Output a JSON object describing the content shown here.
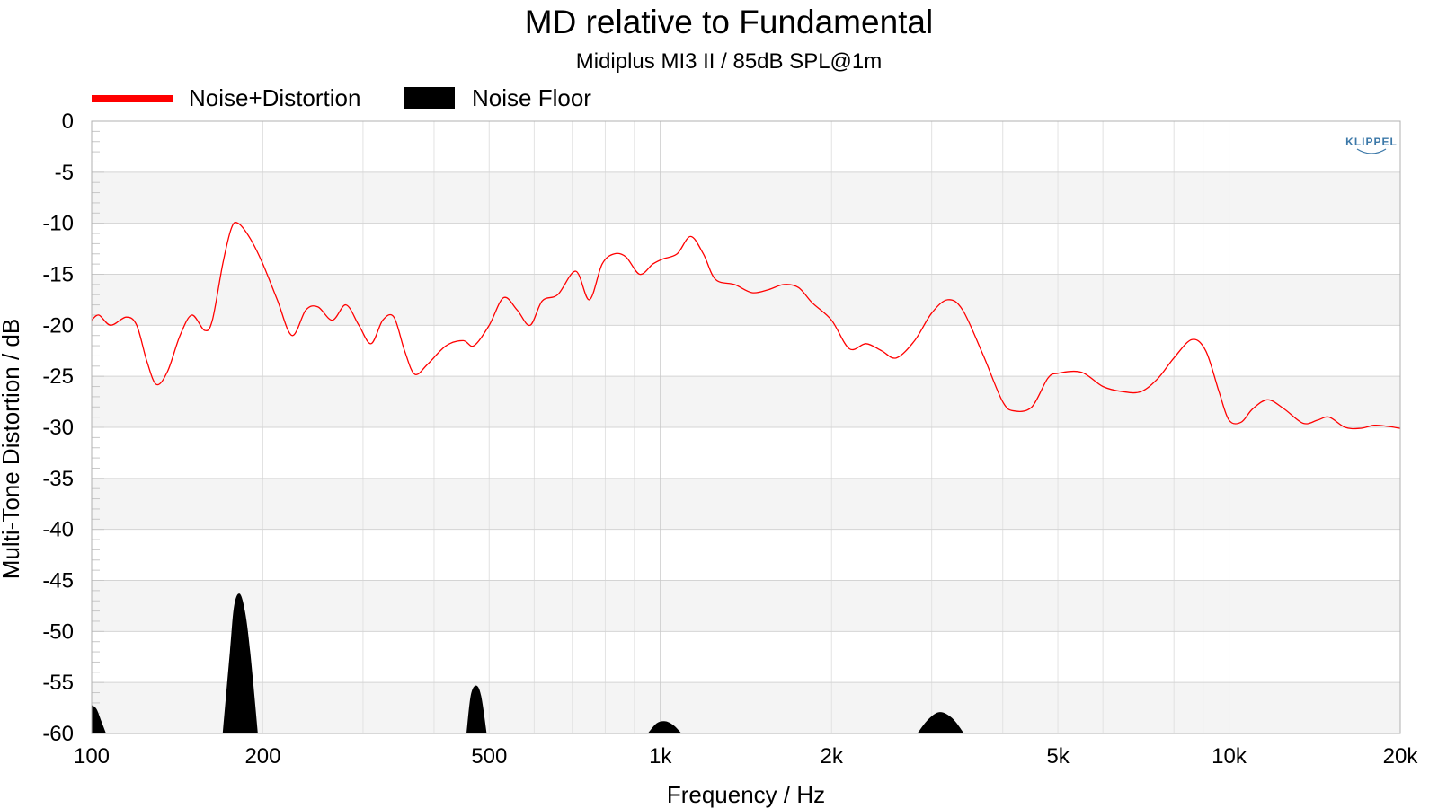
{
  "chart_data": {
    "type": "line",
    "title": "MD relative to Fundamental",
    "subtitle": "Midiplus MI3 II / 85dB SPL@1m",
    "xlabel": "Frequency / Hz",
    "ylabel": "Multi-Tone Distortion / dB",
    "x_scale": "log",
    "xlim": [
      100,
      20000
    ],
    "ylim": [
      -60,
      0
    ],
    "x_ticks": [
      {
        "value": 100,
        "label": "100"
      },
      {
        "value": 200,
        "label": "200"
      },
      {
        "value": 500,
        "label": "500"
      },
      {
        "value": 1000,
        "label": "1k"
      },
      {
        "value": 2000,
        "label": "2k"
      },
      {
        "value": 5000,
        "label": "5k"
      },
      {
        "value": 10000,
        "label": "10k"
      },
      {
        "value": 20000,
        "label": "20k"
      }
    ],
    "y_ticks": [
      {
        "value": 0,
        "label": "0"
      },
      {
        "value": -5,
        "label": "-5"
      },
      {
        "value": -10,
        "label": "-10"
      },
      {
        "value": -15,
        "label": "-15"
      },
      {
        "value": -20,
        "label": "-20"
      },
      {
        "value": -25,
        "label": "-25"
      },
      {
        "value": -30,
        "label": "-30"
      },
      {
        "value": -35,
        "label": "-35"
      },
      {
        "value": -40,
        "label": "-40"
      },
      {
        "value": -45,
        "label": "-45"
      },
      {
        "value": -50,
        "label": "-50"
      },
      {
        "value": -55,
        "label": "-55"
      },
      {
        "value": -60,
        "label": "-60"
      }
    ],
    "grid": true,
    "legend_position": "top-left",
    "logo": "KLIPPEL",
    "colors": {
      "noise_distortion": "#ff0000",
      "noise_floor": "#000000",
      "band_shade": "#f4f4f4",
      "grid": "#d4d4d4"
    },
    "series": [
      {
        "name": "Noise+Distortion",
        "type": "line",
        "points": [
          [
            100,
            -19.5
          ],
          [
            103,
            -19.0
          ],
          [
            108,
            -20.0
          ],
          [
            115,
            -19.2
          ],
          [
            120,
            -20.0
          ],
          [
            125,
            -23.5
          ],
          [
            130,
            -25.8
          ],
          [
            136,
            -24.5
          ],
          [
            143,
            -21.0
          ],
          [
            150,
            -19.0
          ],
          [
            158,
            -20.5
          ],
          [
            163,
            -19.5
          ],
          [
            170,
            -14.0
          ],
          [
            176,
            -10.5
          ],
          [
            181,
            -10.0
          ],
          [
            190,
            -11.5
          ],
          [
            200,
            -14.0
          ],
          [
            212,
            -17.5
          ],
          [
            225,
            -21.0
          ],
          [
            238,
            -18.5
          ],
          [
            250,
            -18.2
          ],
          [
            265,
            -19.5
          ],
          [
            280,
            -18.0
          ],
          [
            295,
            -20.0
          ],
          [
            310,
            -21.8
          ],
          [
            325,
            -19.5
          ],
          [
            340,
            -19.2
          ],
          [
            355,
            -22.5
          ],
          [
            370,
            -24.8
          ],
          [
            390,
            -23.8
          ],
          [
            420,
            -22.0
          ],
          [
            450,
            -21.5
          ],
          [
            470,
            -22.0
          ],
          [
            500,
            -20.0
          ],
          [
            530,
            -17.3
          ],
          [
            560,
            -18.5
          ],
          [
            590,
            -20.0
          ],
          [
            620,
            -17.6
          ],
          [
            660,
            -17.0
          ],
          [
            710,
            -14.7
          ],
          [
            750,
            -17.5
          ],
          [
            790,
            -14.0
          ],
          [
            830,
            -13.0
          ],
          [
            870,
            -13.3
          ],
          [
            920,
            -15.0
          ],
          [
            970,
            -14.0
          ],
          [
            1010,
            -13.5
          ],
          [
            1070,
            -13.0
          ],
          [
            1130,
            -11.3
          ],
          [
            1190,
            -13.0
          ],
          [
            1250,
            -15.5
          ],
          [
            1350,
            -16.0
          ],
          [
            1450,
            -16.8
          ],
          [
            1550,
            -16.5
          ],
          [
            1650,
            -16.0
          ],
          [
            1750,
            -16.3
          ],
          [
            1850,
            -17.8
          ],
          [
            2000,
            -19.5
          ],
          [
            2150,
            -22.3
          ],
          [
            2300,
            -21.8
          ],
          [
            2450,
            -22.5
          ],
          [
            2600,
            -23.2
          ],
          [
            2800,
            -21.5
          ],
          [
            3000,
            -18.8
          ],
          [
            3200,
            -17.5
          ],
          [
            3400,
            -18.5
          ],
          [
            3700,
            -23.0
          ],
          [
            4000,
            -27.5
          ],
          [
            4200,
            -28.4
          ],
          [
            4500,
            -28.0
          ],
          [
            4800,
            -25.2
          ],
          [
            5000,
            -24.7
          ],
          [
            5500,
            -24.6
          ],
          [
            6000,
            -26.0
          ],
          [
            6500,
            -26.5
          ],
          [
            7000,
            -26.5
          ],
          [
            7500,
            -25.2
          ],
          [
            8000,
            -23.2
          ],
          [
            8600,
            -21.4
          ],
          [
            9100,
            -22.5
          ],
          [
            9600,
            -26.5
          ],
          [
            10000,
            -29.3
          ],
          [
            10500,
            -29.5
          ],
          [
            11000,
            -28.2
          ],
          [
            11700,
            -27.3
          ],
          [
            12500,
            -28.2
          ],
          [
            13500,
            -29.6
          ],
          [
            14300,
            -29.3
          ],
          [
            15000,
            -29.0
          ],
          [
            16000,
            -30.0
          ],
          [
            17000,
            -30.1
          ],
          [
            18000,
            -29.8
          ],
          [
            19000,
            -29.9
          ],
          [
            20000,
            -30.1
          ]
        ]
      },
      {
        "name": "Noise Floor",
        "type": "area",
        "baseline": -60,
        "peaks": [
          {
            "points": [
              [
                100,
                -57.2
              ],
              [
                102,
                -57.6
              ],
              [
                104,
                -58.8
              ],
              [
                106,
                -60
              ]
            ]
          },
          {
            "points": [
              [
                170,
                -60
              ],
              [
                175,
                -52.0
              ],
              [
                178,
                -47.5
              ],
              [
                182,
                -46.3
              ],
              [
                186,
                -48.0
              ],
              [
                190,
                -52.0
              ],
              [
                196,
                -60
              ]
            ]
          },
          {
            "points": [
              [
                456,
                -60
              ],
              [
                464,
                -56.3
              ],
              [
                474,
                -55.3
              ],
              [
                484,
                -56.3
              ],
              [
                495,
                -60
              ]
            ]
          },
          {
            "points": [
              [
                950,
                -60
              ],
              [
                985,
                -59.0
              ],
              [
                1020,
                -58.8
              ],
              [
                1055,
                -59.2
              ],
              [
                1090,
                -60
              ]
            ]
          },
          {
            "points": [
              [
                2830,
                -60
              ],
              [
                2960,
                -58.6
              ],
              [
                3100,
                -57.9
              ],
              [
                3260,
                -58.5
              ],
              [
                3420,
                -60
              ]
            ]
          }
        ]
      }
    ]
  }
}
